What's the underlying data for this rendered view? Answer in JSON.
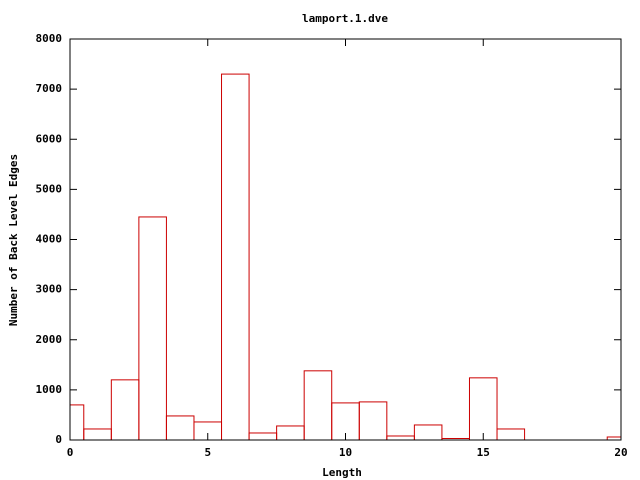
{
  "chart_data": {
    "type": "histogram",
    "title": "lamport.1.dve",
    "xlabel": "Length",
    "ylabel": "Number of Back Level Edges",
    "x": [
      0,
      1,
      2,
      3,
      4,
      5,
      6,
      7,
      8,
      9,
      10,
      11,
      12,
      13,
      14,
      15,
      16,
      20
    ],
    "values": [
      700,
      220,
      1200,
      4450,
      480,
      360,
      7300,
      140,
      280,
      1380,
      740,
      760,
      80,
      300,
      30,
      1240,
      220,
      60
    ],
    "color": "#cc0000",
    "xlim": [
      0,
      20
    ],
    "xticks": [
      0,
      5,
      10,
      15,
      20
    ],
    "ylim": [
      0,
      8000
    ],
    "yticks": [
      0,
      1000,
      2000,
      3000,
      4000,
      5000,
      6000,
      7000,
      8000
    ],
    "grid": false
  }
}
